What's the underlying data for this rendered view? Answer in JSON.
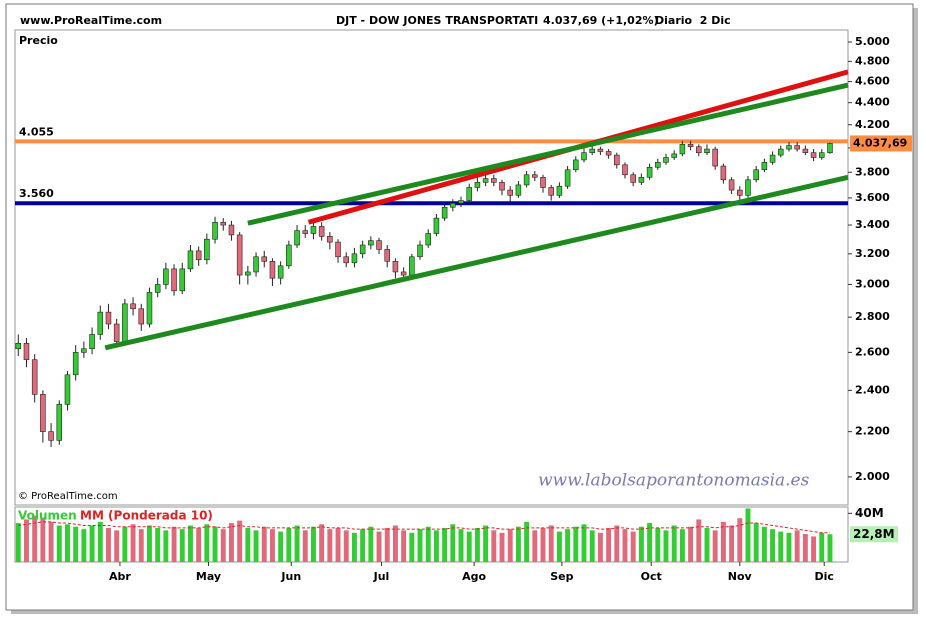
{
  "header": {
    "site": "www.ProRealTime.com",
    "symbol": "DJT - DOW JONES TRANSPORTATI",
    "quote": "4.037,69 (+1,02%)",
    "period": "Diario  2 Dic"
  },
  "chart_data": [
    {
      "type": "candlestick",
      "ylabel": "Precio",
      "log_scale": true,
      "up_color": "#33cc33",
      "down_color": "#e06a7a",
      "open": [
        2620,
        2650,
        2560,
        2380,
        2200,
        2160,
        2330,
        2480,
        2600,
        2620,
        2700,
        2830,
        2760,
        2660,
        2880,
        2850,
        2760,
        2950,
        3000,
        3100,
        2960,
        3100,
        3220,
        3160,
        3300,
        3420,
        3400,
        3330,
        3060,
        3080,
        3180,
        3150,
        3040,
        3120,
        3260,
        3360,
        3340,
        3390,
        3320,
        3280,
        3180,
        3140,
        3200,
        3260,
        3290,
        3230,
        3150,
        3080,
        3060,
        3180,
        3260,
        3340,
        3450,
        3530,
        3560,
        3580,
        3680,
        3720,
        3750,
        3720,
        3660,
        3620,
        3700,
        3780,
        3760,
        3680,
        3620,
        3690,
        3820,
        3900,
        3960,
        3990,
        3970,
        3940,
        3860,
        3780,
        3720,
        3760,
        3840,
        3880,
        3920,
        3950,
        4030,
        4010,
        3960,
        3990,
        3850,
        3740,
        3660,
        3620,
        3740,
        3820,
        3880,
        3940,
        3990,
        4020,
        3990,
        3960,
        3920,
        3960
      ],
      "high": [
        2700,
        2680,
        2590,
        2400,
        2240,
        2350,
        2500,
        2640,
        2660,
        2740,
        2870,
        2880,
        2790,
        2910,
        2920,
        2880,
        2980,
        3040,
        3140,
        3130,
        3140,
        3260,
        3250,
        3340,
        3460,
        3450,
        3430,
        3350,
        3120,
        3210,
        3220,
        3170,
        3150,
        3290,
        3400,
        3400,
        3420,
        3420,
        3350,
        3300,
        3210,
        3240,
        3290,
        3320,
        3310,
        3260,
        3170,
        3110,
        3200,
        3290,
        3370,
        3480,
        3560,
        3590,
        3610,
        3710,
        3760,
        3790,
        3780,
        3740,
        3690,
        3730,
        3810,
        3810,
        3780,
        3700,
        3720,
        3850,
        3930,
        4000,
        4030,
        4010,
        3990,
        3960,
        3880,
        3800,
        3790,
        3870,
        3910,
        3950,
        3980,
        4060,
        4060,
        4030,
        4030,
        4010,
        3870,
        3760,
        3690,
        3770,
        3850,
        3910,
        3970,
        4020,
        4050,
        4050,
        4020,
        3990,
        3990,
        4045
      ],
      "low": [
        2580,
        2520,
        2340,
        2150,
        2130,
        2140,
        2300,
        2450,
        2570,
        2590,
        2670,
        2730,
        2630,
        2640,
        2810,
        2720,
        2740,
        2920,
        2970,
        2930,
        2940,
        3080,
        3120,
        3130,
        3270,
        3360,
        3290,
        3000,
        3000,
        3050,
        3110,
        2990,
        3000,
        3100,
        3240,
        3310,
        3300,
        3290,
        3230,
        3140,
        3110,
        3110,
        3170,
        3230,
        3200,
        3110,
        3040,
        3020,
        3040,
        3160,
        3240,
        3320,
        3430,
        3500,
        3530,
        3560,
        3650,
        3690,
        3690,
        3620,
        3570,
        3600,
        3680,
        3730,
        3640,
        3580,
        3600,
        3670,
        3800,
        3880,
        3940,
        3940,
        3910,
        3830,
        3750,
        3690,
        3700,
        3740,
        3820,
        3860,
        3900,
        3930,
        3980,
        3930,
        3940,
        3820,
        3710,
        3630,
        3580,
        3600,
        3720,
        3800,
        3860,
        3920,
        3970,
        3970,
        3940,
        3890,
        3900,
        3950
      ],
      "close": [
        2650,
        2560,
        2380,
        2200,
        2160,
        2330,
        2480,
        2600,
        2620,
        2700,
        2830,
        2760,
        2660,
        2880,
        2850,
        2760,
        2950,
        3000,
        3100,
        2960,
        3100,
        3220,
        3160,
        3300,
        3420,
        3400,
        3330,
        3060,
        3080,
        3180,
        3150,
        3040,
        3120,
        3260,
        3360,
        3340,
        3390,
        3320,
        3280,
        3180,
        3140,
        3200,
        3260,
        3290,
        3230,
        3150,
        3080,
        3060,
        3180,
        3260,
        3340,
        3450,
        3530,
        3560,
        3580,
        3680,
        3720,
        3750,
        3720,
        3660,
        3620,
        3700,
        3780,
        3760,
        3680,
        3620,
        3690,
        3820,
        3900,
        3960,
        3990,
        3970,
        3940,
        3860,
        3780,
        3720,
        3760,
        3840,
        3880,
        3920,
        3950,
        4030,
        4010,
        3960,
        3990,
        3850,
        3740,
        3660,
        3620,
        3740,
        3820,
        3880,
        3940,
        3990,
        4020,
        3990,
        3960,
        3920,
        3960,
        4037.69
      ],
      "xlim": [
        -0.4,
        101.2
      ],
      "xticks": [
        {
          "value": 12.4,
          "label": "Abr"
        },
        {
          "value": 23.2,
          "label": "May"
        },
        {
          "value": 33.3,
          "label": "Jun"
        },
        {
          "value": 44.3,
          "label": "Jul"
        },
        {
          "value": 55.6,
          "label": "Ago"
        },
        {
          "value": 66.3,
          "label": "Sep"
        },
        {
          "value": 77.2,
          "label": "Oct"
        },
        {
          "value": 88,
          "label": "Nov"
        },
        {
          "value": 98.3,
          "label": "Dic"
        }
      ],
      "ylim": [
        1885,
        5128
      ],
      "yticks": [
        {
          "value": 2000,
          "label": "2.000"
        },
        {
          "value": 2200,
          "label": "2.200"
        },
        {
          "value": 2400,
          "label": "2.400"
        },
        {
          "value": 2600,
          "label": "2.600"
        },
        {
          "value": 2800,
          "label": "2.800"
        },
        {
          "value": 3000,
          "label": "3.000"
        },
        {
          "value": 3200,
          "label": "3.200"
        },
        {
          "value": 3400,
          "label": "3.400"
        },
        {
          "value": 3600,
          "label": "3.600"
        },
        {
          "value": 3800,
          "label": "3.800"
        },
        {
          "value": 4000,
          "label": "4.000"
        },
        {
          "value": 4200,
          "label": "4.200"
        },
        {
          "value": 4400,
          "label": "4.400"
        },
        {
          "value": 4600,
          "label": "4.600"
        },
        {
          "value": 4800,
          "label": "4.800"
        },
        {
          "value": 5000,
          "label": "5.000"
        }
      ],
      "hlines": [
        {
          "value": 4055,
          "label": "4.055",
          "color": "#ff8c40"
        },
        {
          "value": 3560,
          "label": "3.560",
          "color": "#000099"
        }
      ],
      "trendlines": [
        {
          "color": "#e01010",
          "x": [
            35.4,
            101.2
          ],
          "y": [
            3420,
            4695
          ]
        },
        {
          "color": "#1e8a1e",
          "x": [
            28.0,
            101.2
          ],
          "y": [
            3413,
            4566
          ]
        },
        {
          "color": "#1e8a1e",
          "x": [
            10.6,
            101.2
          ],
          "y": [
            2625,
            3760
          ]
        }
      ],
      "last_price": {
        "value": 4037.69,
        "label": "4.037,69",
        "color": "#ff8c40"
      },
      "copyright": "© ProRealTime.com",
      "watermark": "www.labolsaporantonomasia.es"
    },
    {
      "type": "bar",
      "series": [
        {
          "name": "Volumen",
          "color": "#33cc33",
          "down_color": "#e06a7a",
          "values": [
            32,
            35,
            38,
            36,
            33,
            30,
            31,
            29,
            27,
            30,
            33,
            28,
            26,
            29,
            31,
            27,
            30,
            28,
            26,
            29,
            27,
            30,
            28,
            31,
            29,
            27,
            32,
            34,
            28,
            26,
            29,
            27,
            25,
            28,
            30,
            26,
            29,
            31,
            27,
            28,
            26,
            24,
            27,
            29,
            25,
            28,
            30,
            26,
            24,
            27,
            29,
            26,
            28,
            31,
            27,
            25,
            28,
            30,
            26,
            24,
            27,
            29,
            33,
            26,
            28,
            30,
            25,
            27,
            29,
            31,
            26,
            24,
            28,
            30,
            27,
            25,
            29,
            32,
            28,
            26,
            30,
            27,
            29,
            35,
            28,
            26,
            33,
            30,
            36,
            44,
            32,
            29,
            27,
            25,
            24,
            26,
            23,
            21,
            24,
            22.8
          ]
        },
        {
          "name": "MM (Ponderada 10)",
          "type": "line",
          "color": "#dd2222",
          "values": [
            30,
            31,
            32,
            33,
            33,
            32,
            32,
            31,
            30,
            30,
            30,
            30,
            29,
            29,
            29,
            29,
            29,
            29,
            28,
            28,
            28,
            28,
            28,
            29,
            29,
            28,
            29,
            30,
            29,
            29,
            28,
            28,
            28,
            28,
            28,
            28,
            28,
            29,
            28,
            28,
            28,
            27,
            27,
            27,
            27,
            27,
            27,
            27,
            27,
            27,
            27,
            27,
            27,
            28,
            28,
            27,
            27,
            28,
            28,
            27,
            27,
            27,
            28,
            28,
            28,
            28,
            28,
            28,
            28,
            28,
            28,
            27,
            27,
            28,
            28,
            27,
            27,
            28,
            28,
            28,
            28,
            28,
            28,
            29,
            29,
            28,
            29,
            29,
            30,
            32,
            32,
            31,
            30,
            29,
            28,
            27,
            26,
            25,
            24,
            24
          ]
        }
      ],
      "ylim": [
        0,
        45.2
      ],
      "yticks": [
        {
          "value": 40,
          "label": "40M"
        }
      ],
      "last_value": {
        "value": 22.8,
        "label": "22,8M",
        "color": "#b6f0b6"
      }
    }
  ]
}
